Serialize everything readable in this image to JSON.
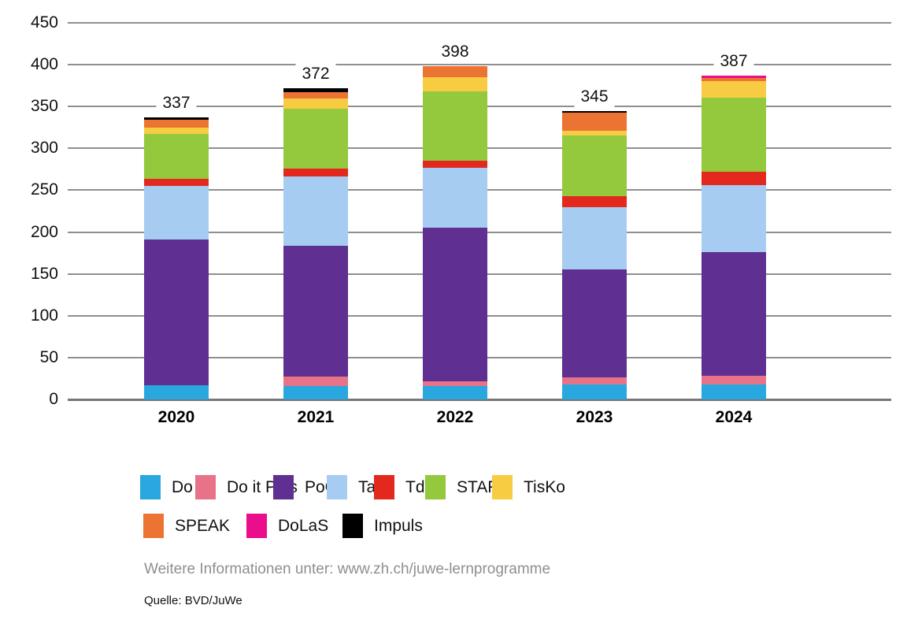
{
  "chart_data": {
    "type": "bar",
    "stacked": true,
    "categories": [
      "2020",
      "2021",
      "2022",
      "2023",
      "2024"
    ],
    "totals": [
      337,
      372,
      398,
      345,
      387
    ],
    "series": [
      {
        "name": "Do it",
        "color": "#29A8E0",
        "values": [
          17,
          16,
          16,
          18,
          18
        ]
      },
      {
        "name": "Do it Plus",
        "color": "#E87389",
        "values": [
          0,
          11,
          6,
          8,
          10
        ]
      },
      {
        "name": "PoG",
        "color": "#5F3091",
        "values": [
          174,
          157,
          183,
          129,
          148
        ]
      },
      {
        "name": "TaV",
        "color": "#A7CCF2",
        "values": [
          64,
          82,
          72,
          75,
          80
        ]
      },
      {
        "name": "TdV",
        "color": "#E3291D",
        "values": [
          9,
          10,
          8,
          13,
          16
        ]
      },
      {
        "name": "START",
        "color": "#94C83D",
        "values": [
          53,
          71,
          83,
          72,
          89
        ]
      },
      {
        "name": "TisKo",
        "color": "#F7CB42",
        "values": [
          8,
          13,
          17,
          6,
          19
        ]
      },
      {
        "name": "SPEAK",
        "color": "#EC7433",
        "values": [
          9,
          7,
          13,
          22,
          4
        ]
      },
      {
        "name": "DoLaS",
        "color": "#EA0D8C",
        "values": [
          0,
          0,
          0,
          0,
          3
        ]
      },
      {
        "name": "Impuls",
        "color": "#000000",
        "values": [
          3,
          5,
          0,
          2,
          0
        ]
      }
    ],
    "ylim": [
      0,
      450
    ],
    "ytick_step": 50,
    "grid": true,
    "legend_position": "bottom",
    "xlabel": "",
    "ylabel": "",
    "title": ""
  },
  "footer": {
    "info": "Weitere Informationen unter: www.zh.ch/juwe-lernprogramme",
    "source": "Quelle: BVD/JuWe"
  }
}
